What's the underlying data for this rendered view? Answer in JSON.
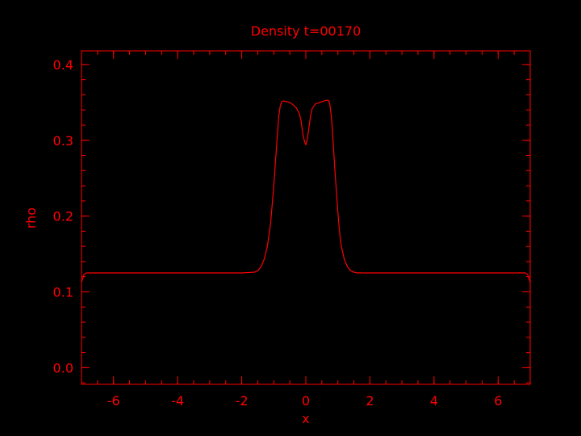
{
  "chart_data": {
    "type": "line",
    "title": "Density t=00170",
    "xlabel": "x",
    "ylabel": "rho",
    "xlim": [
      -7,
      7
    ],
    "ylim": [
      -0.022,
      0.418
    ],
    "xticks": [
      -6,
      -4,
      -2,
      0,
      2,
      4,
      6
    ],
    "xtick_labels": [
      "-6",
      "-4",
      "-2",
      "0",
      "2",
      "4",
      "6"
    ],
    "yticks": [
      0.0,
      0.1,
      0.2,
      0.3,
      0.4
    ],
    "ytick_labels": [
      "0.0",
      "0.1",
      "0.2",
      "0.3",
      "0.4"
    ],
    "x_minor_step": 0.5,
    "y_minor_step": 0.02,
    "grid": false,
    "colors": {
      "foreground": "#ff0000",
      "background": "#000000"
    },
    "series": [
      {
        "x": [
          -7.0,
          -6.92,
          -6.85,
          -6.5,
          -5,
          -3,
          -2,
          -1.6,
          -1.5,
          -1.4,
          -1.3,
          -1.2,
          -1.1,
          -1.0,
          -0.95,
          -0.9,
          -0.85,
          -0.8,
          -0.75,
          -0.7,
          -0.5,
          -0.4,
          -0.3,
          -0.2,
          -0.15,
          -0.1,
          -0.05,
          0.0,
          0.05,
          0.1,
          0.15,
          0.2,
          0.3,
          0.5,
          0.65,
          0.72,
          0.75,
          0.8,
          0.85,
          0.9,
          0.95,
          1.0,
          1.05,
          1.1,
          1.2,
          1.3,
          1.4,
          1.5,
          1.6,
          2,
          3,
          5,
          6.5,
          6.85,
          6.92,
          7.0
        ],
        "y": [
          0.113,
          0.123,
          0.125,
          0.125,
          0.125,
          0.125,
          0.125,
          0.126,
          0.128,
          0.133,
          0.143,
          0.16,
          0.19,
          0.24,
          0.27,
          0.3,
          0.33,
          0.345,
          0.351,
          0.352,
          0.35,
          0.347,
          0.343,
          0.335,
          0.326,
          0.31,
          0.3,
          0.294,
          0.302,
          0.318,
          0.333,
          0.342,
          0.348,
          0.351,
          0.353,
          0.352,
          0.347,
          0.33,
          0.3,
          0.265,
          0.235,
          0.205,
          0.18,
          0.162,
          0.143,
          0.133,
          0.128,
          0.126,
          0.125,
          0.125,
          0.125,
          0.125,
          0.125,
          0.125,
          0.123,
          0.113
        ]
      }
    ]
  }
}
